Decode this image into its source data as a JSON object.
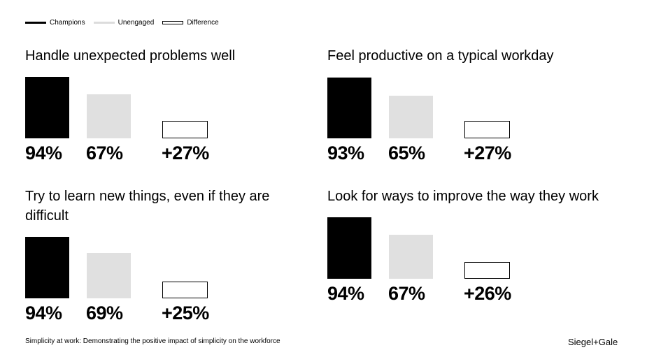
{
  "legend": {
    "champions": "Champions",
    "unengaged": "Unengaged",
    "difference": "Difference"
  },
  "chart_data": [
    {
      "type": "bar",
      "title": "Handle unexpected problems well",
      "categories": [
        "Champions",
        "Unengaged",
        "Difference"
      ],
      "values": [
        94,
        67,
        27
      ],
      "labels": [
        "94%",
        "67%",
        "+27%"
      ]
    },
    {
      "type": "bar",
      "title": "Feel productive on a typical workday",
      "categories": [
        "Champions",
        "Unengaged",
        "Difference"
      ],
      "values": [
        93,
        65,
        27
      ],
      "labels": [
        "93%",
        "65%",
        "+27%"
      ]
    },
    {
      "type": "bar",
      "title": "Try to learn new things, even if they are difficult",
      "categories": [
        "Champions",
        "Unengaged",
        "Difference"
      ],
      "values": [
        94,
        69,
        25
      ],
      "labels": [
        "94%",
        "69%",
        "+25%"
      ]
    },
    {
      "type": "bar",
      "title": "Look for ways to improve the way they work",
      "categories": [
        "Champions",
        "Unengaged",
        "Difference"
      ],
      "values": [
        94,
        67,
        26
      ],
      "labels": [
        "94%",
        "67%",
        "+26%"
      ]
    }
  ],
  "footer": {
    "caption": "Simplicity at work: Demonstrating the positive impact of simplicity on the workforce",
    "brand": "Siegel+Gale"
  },
  "colors": {
    "champions": "#000000",
    "unengaged": "#e0e0e0",
    "difference": "#ffffff"
  }
}
